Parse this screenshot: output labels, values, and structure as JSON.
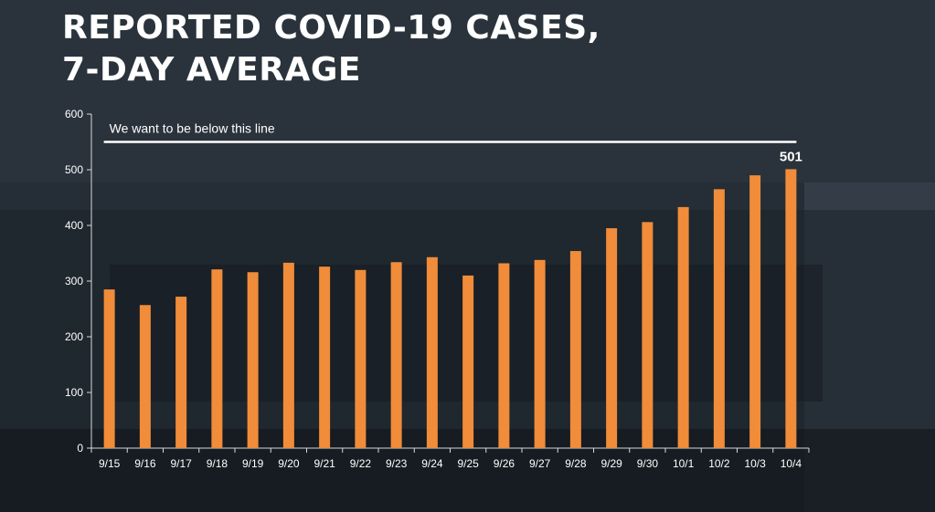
{
  "page": {
    "title_line1": "REPORTED COVID-19 CASES,",
    "title_line2": "7-DAY AVERAGE"
  },
  "chart_data": {
    "type": "bar",
    "categories": [
      "9/15",
      "9/16",
      "9/17",
      "9/18",
      "9/19",
      "9/20",
      "9/21",
      "9/22",
      "9/23",
      "9/24",
      "9/25",
      "9/26",
      "9/27",
      "9/28",
      "9/29",
      "9/30",
      "10/1",
      "10/2",
      "10/3",
      "10/4"
    ],
    "values": [
      285,
      257,
      272,
      321,
      316,
      333,
      326,
      320,
      334,
      343,
      310,
      332,
      338,
      354,
      395,
      406,
      433,
      465,
      490,
      501
    ],
    "ylim": [
      0,
      600
    ],
    "yticks": [
      0,
      100,
      200,
      300,
      400,
      500,
      600
    ],
    "bar_color": "#f08c3a",
    "data_labels": [
      {
        "category": "10/4",
        "text": "501"
      }
    ],
    "reference_line": {
      "value": 550,
      "label": "We want to be below this line",
      "color": "#ffffff"
    },
    "grid": false,
    "legend": "none"
  }
}
